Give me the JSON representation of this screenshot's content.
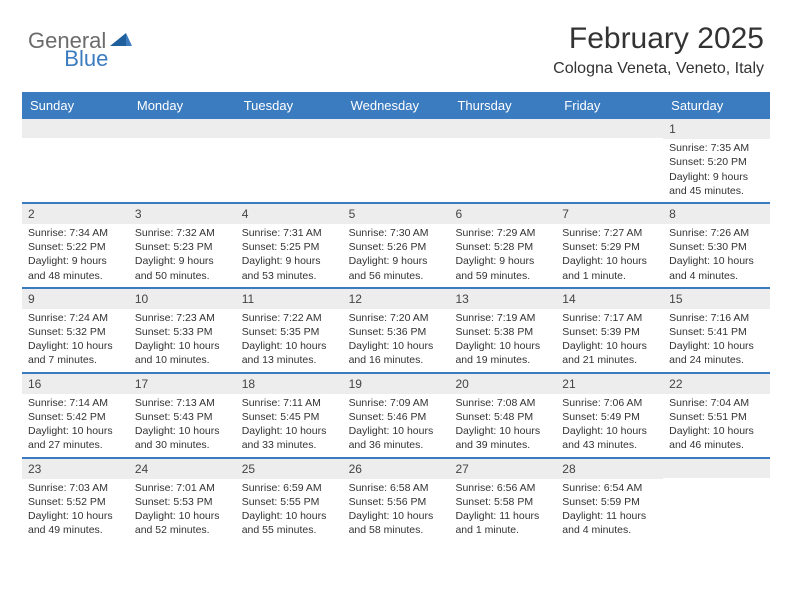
{
  "logo": {
    "general": "General",
    "blue": "Blue"
  },
  "title": "February 2025",
  "location": "Cologna Veneta, Veneto, Italy",
  "colors": {
    "accent": "#3b7bbf",
    "header_text": "#ffffff",
    "daynum_bg": "#ededed",
    "text": "#333333",
    "logo_gray": "#6b6b6b"
  },
  "weekdays": [
    "Sunday",
    "Monday",
    "Tuesday",
    "Wednesday",
    "Thursday",
    "Friday",
    "Saturday"
  ],
  "weeks": [
    [
      {
        "blank": true
      },
      {
        "blank": true
      },
      {
        "blank": true
      },
      {
        "blank": true
      },
      {
        "blank": true
      },
      {
        "blank": true
      },
      {
        "num": "1",
        "sunrise": "Sunrise: 7:35 AM",
        "sunset": "Sunset: 5:20 PM",
        "daylight": "Daylight: 9 hours and 45 minutes."
      }
    ],
    [
      {
        "num": "2",
        "sunrise": "Sunrise: 7:34 AM",
        "sunset": "Sunset: 5:22 PM",
        "daylight": "Daylight: 9 hours and 48 minutes."
      },
      {
        "num": "3",
        "sunrise": "Sunrise: 7:32 AM",
        "sunset": "Sunset: 5:23 PM",
        "daylight": "Daylight: 9 hours and 50 minutes."
      },
      {
        "num": "4",
        "sunrise": "Sunrise: 7:31 AM",
        "sunset": "Sunset: 5:25 PM",
        "daylight": "Daylight: 9 hours and 53 minutes."
      },
      {
        "num": "5",
        "sunrise": "Sunrise: 7:30 AM",
        "sunset": "Sunset: 5:26 PM",
        "daylight": "Daylight: 9 hours and 56 minutes."
      },
      {
        "num": "6",
        "sunrise": "Sunrise: 7:29 AM",
        "sunset": "Sunset: 5:28 PM",
        "daylight": "Daylight: 9 hours and 59 minutes."
      },
      {
        "num": "7",
        "sunrise": "Sunrise: 7:27 AM",
        "sunset": "Sunset: 5:29 PM",
        "daylight": "Daylight: 10 hours and 1 minute."
      },
      {
        "num": "8",
        "sunrise": "Sunrise: 7:26 AM",
        "sunset": "Sunset: 5:30 PM",
        "daylight": "Daylight: 10 hours and 4 minutes."
      }
    ],
    [
      {
        "num": "9",
        "sunrise": "Sunrise: 7:24 AM",
        "sunset": "Sunset: 5:32 PM",
        "daylight": "Daylight: 10 hours and 7 minutes."
      },
      {
        "num": "10",
        "sunrise": "Sunrise: 7:23 AM",
        "sunset": "Sunset: 5:33 PM",
        "daylight": "Daylight: 10 hours and 10 minutes."
      },
      {
        "num": "11",
        "sunrise": "Sunrise: 7:22 AM",
        "sunset": "Sunset: 5:35 PM",
        "daylight": "Daylight: 10 hours and 13 minutes."
      },
      {
        "num": "12",
        "sunrise": "Sunrise: 7:20 AM",
        "sunset": "Sunset: 5:36 PM",
        "daylight": "Daylight: 10 hours and 16 minutes."
      },
      {
        "num": "13",
        "sunrise": "Sunrise: 7:19 AM",
        "sunset": "Sunset: 5:38 PM",
        "daylight": "Daylight: 10 hours and 19 minutes."
      },
      {
        "num": "14",
        "sunrise": "Sunrise: 7:17 AM",
        "sunset": "Sunset: 5:39 PM",
        "daylight": "Daylight: 10 hours and 21 minutes."
      },
      {
        "num": "15",
        "sunrise": "Sunrise: 7:16 AM",
        "sunset": "Sunset: 5:41 PM",
        "daylight": "Daylight: 10 hours and 24 minutes."
      }
    ],
    [
      {
        "num": "16",
        "sunrise": "Sunrise: 7:14 AM",
        "sunset": "Sunset: 5:42 PM",
        "daylight": "Daylight: 10 hours and 27 minutes."
      },
      {
        "num": "17",
        "sunrise": "Sunrise: 7:13 AM",
        "sunset": "Sunset: 5:43 PM",
        "daylight": "Daylight: 10 hours and 30 minutes."
      },
      {
        "num": "18",
        "sunrise": "Sunrise: 7:11 AM",
        "sunset": "Sunset: 5:45 PM",
        "daylight": "Daylight: 10 hours and 33 minutes."
      },
      {
        "num": "19",
        "sunrise": "Sunrise: 7:09 AM",
        "sunset": "Sunset: 5:46 PM",
        "daylight": "Daylight: 10 hours and 36 minutes."
      },
      {
        "num": "20",
        "sunrise": "Sunrise: 7:08 AM",
        "sunset": "Sunset: 5:48 PM",
        "daylight": "Daylight: 10 hours and 39 minutes."
      },
      {
        "num": "21",
        "sunrise": "Sunrise: 7:06 AM",
        "sunset": "Sunset: 5:49 PM",
        "daylight": "Daylight: 10 hours and 43 minutes."
      },
      {
        "num": "22",
        "sunrise": "Sunrise: 7:04 AM",
        "sunset": "Sunset: 5:51 PM",
        "daylight": "Daylight: 10 hours and 46 minutes."
      }
    ],
    [
      {
        "num": "23",
        "sunrise": "Sunrise: 7:03 AM",
        "sunset": "Sunset: 5:52 PM",
        "daylight": "Daylight: 10 hours and 49 minutes."
      },
      {
        "num": "24",
        "sunrise": "Sunrise: 7:01 AM",
        "sunset": "Sunset: 5:53 PM",
        "daylight": "Daylight: 10 hours and 52 minutes."
      },
      {
        "num": "25",
        "sunrise": "Sunrise: 6:59 AM",
        "sunset": "Sunset: 5:55 PM",
        "daylight": "Daylight: 10 hours and 55 minutes."
      },
      {
        "num": "26",
        "sunrise": "Sunrise: 6:58 AM",
        "sunset": "Sunset: 5:56 PM",
        "daylight": "Daylight: 10 hours and 58 minutes."
      },
      {
        "num": "27",
        "sunrise": "Sunrise: 6:56 AM",
        "sunset": "Sunset: 5:58 PM",
        "daylight": "Daylight: 11 hours and 1 minute."
      },
      {
        "num": "28",
        "sunrise": "Sunrise: 6:54 AM",
        "sunset": "Sunset: 5:59 PM",
        "daylight": "Daylight: 11 hours and 4 minutes."
      },
      {
        "blank": true
      }
    ]
  ]
}
